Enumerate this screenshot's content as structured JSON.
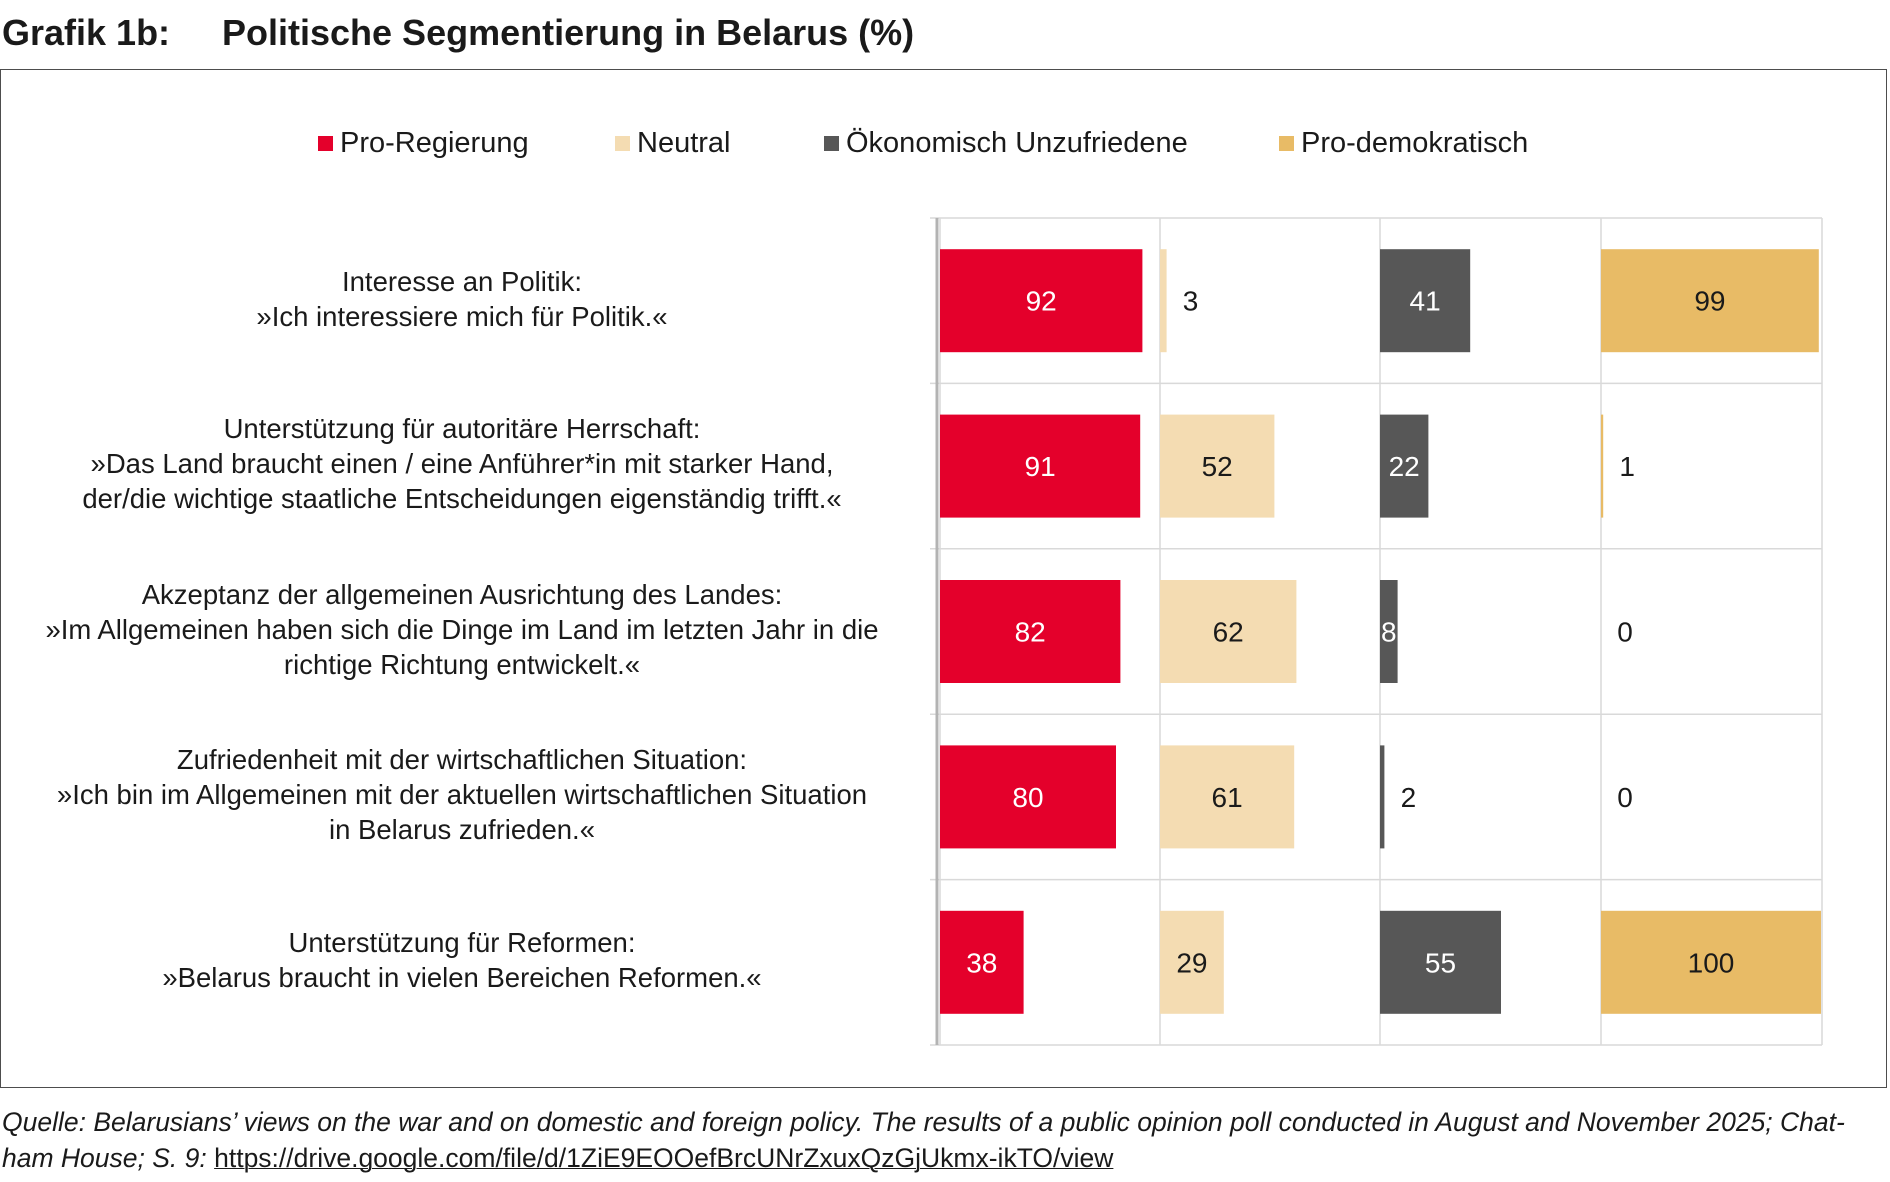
{
  "header": {
    "label": "Grafik 1b:",
    "title": "Politische Segmentierung in Belarus (%)"
  },
  "colors": {
    "pro_regierung": "#e4002b",
    "neutral": "#f4dcb2",
    "oekonomisch": "#575757",
    "pro_demokratisch": "#e8bb66",
    "grid": "#d9d9d9"
  },
  "chart_data": {
    "type": "bar",
    "layout": "small-multiples horizontal bar",
    "title": "Politische Segmentierung in Belarus (%)",
    "xlim": [
      0,
      100
    ],
    "legend": "top",
    "categories": [
      {
        "line1": "Interesse an Politik:",
        "line2": "»Ich interessiere mich für Politik.«",
        "line3": ""
      },
      {
        "line1": "Unterstützung für autoritäre Herrschaft:",
        "line2": "»Das Land braucht einen / eine Anführer*in mit starker Hand,",
        "line3": "der/die wichtige staatliche Entscheidungen eigenständig trifft.«"
      },
      {
        "line1": "Akzeptanz der allgemeinen Ausrichtung des Landes:",
        "line2": "»Im Allgemeinen haben sich die Dinge im Land im letzten Jahr in die",
        "line3": "richtige Richtung entwickelt.«"
      },
      {
        "line1": "Zufriedenheit mit der wirtschaftlichen Situation:",
        "line2": "»Ich bin im Allgemeinen mit der aktuellen wirtschaftlichen Situation",
        "line3": "in Belarus zufrieden.«"
      },
      {
        "line1": "Unterstützung für Reformen:",
        "line2": "»Belarus braucht in vielen Bereichen Reformen.«",
        "line3": ""
      }
    ],
    "series": [
      {
        "name": "Pro-Regierung",
        "color": "#e4002b",
        "label_color": "#ffffff",
        "values": [
          92,
          91,
          82,
          80,
          38
        ]
      },
      {
        "name": "Neutral",
        "color": "#f4dcb2",
        "label_color": "#1a1a1a",
        "values": [
          3,
          52,
          62,
          61,
          29
        ]
      },
      {
        "name": "Ökonomisch Unzufriedene",
        "color": "#575757",
        "label_color": "#ffffff",
        "values": [
          41,
          22,
          8,
          2,
          55
        ]
      },
      {
        "name": "Pro-demokratisch",
        "color": "#e8bb66",
        "label_color": "#1a1a1a",
        "values": [
          99,
          1,
          0,
          0,
          100
        ]
      }
    ]
  },
  "source": {
    "text": "Quelle: Belarusians’ views on the war and on domestic and foreign policy. The results of a public opinion poll conducted in August and November 2025; Chat-ham House; S. 9: ",
    "url": "https://drive.google.com/file/d/1ZiE9EOOefBrcUNrZxuxQzGjUkmx-ikTO/view"
  }
}
